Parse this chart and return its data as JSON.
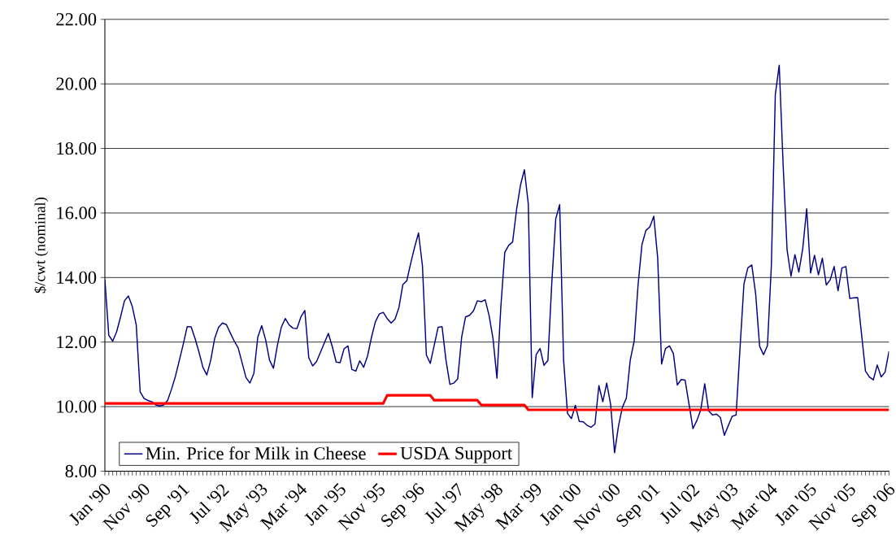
{
  "chart_data": {
    "type": "line",
    "ylabel": "$/cwt (nominal)",
    "categories": [
      "Jan '90",
      null,
      null,
      null,
      null,
      null,
      null,
      null,
      null,
      null,
      "Nov '90",
      null,
      null,
      null,
      null,
      null,
      null,
      null,
      null,
      null,
      "Sep '91",
      null,
      null,
      null,
      null,
      null,
      null,
      null,
      null,
      null,
      "Jul '92",
      null,
      null,
      null,
      null,
      null,
      null,
      null,
      null,
      null,
      "May '93",
      null,
      null,
      null,
      null,
      null,
      null,
      null,
      null,
      null,
      "Mar '94",
      null,
      null,
      null,
      null,
      null,
      null,
      null,
      null,
      null,
      "Jan '95",
      null,
      null,
      null,
      null,
      null,
      null,
      null,
      null,
      null,
      "Nov '95",
      null,
      null,
      null,
      null,
      null,
      null,
      null,
      null,
      null,
      "Sep '96",
      null,
      null,
      null,
      null,
      null,
      null,
      null,
      null,
      null,
      "Jul '97",
      null,
      null,
      null,
      null,
      null,
      null,
      null,
      null,
      null,
      "May '98",
      null,
      null,
      null,
      null,
      null,
      null,
      null,
      null,
      null,
      "Mar '99",
      null,
      null,
      null,
      null,
      null,
      null,
      null,
      null,
      null,
      "Jan '00",
      null,
      null,
      null,
      null,
      null,
      null,
      null,
      null,
      null,
      "Nov '00",
      null,
      null,
      null,
      null,
      null,
      null,
      null,
      null,
      null,
      "Sep '01",
      null,
      null,
      null,
      null,
      null,
      null,
      null,
      null,
      null,
      "Jul '02",
      null,
      null,
      null,
      null,
      null,
      null,
      null,
      null,
      null,
      "May '03",
      null,
      null,
      null,
      null,
      null,
      null,
      null,
      null,
      null,
      "Mar '04",
      null,
      null,
      null,
      null,
      null,
      null,
      null,
      null,
      null,
      "Jan '05",
      null,
      null,
      null,
      null,
      null,
      null,
      null,
      null,
      null,
      "Nov '05",
      null,
      null,
      null,
      null,
      null,
      null,
      null,
      null,
      null,
      "Sep '06"
    ],
    "series": [
      {
        "name": "Min. Price for Milk in Cheese",
        "color": "#000080",
        "values": [
          13.94,
          12.21,
          12.03,
          12.32,
          12.78,
          13.28,
          13.43,
          13.1,
          12.53,
          10.46,
          10.25,
          10.19,
          10.15,
          10.05,
          10.02,
          10.05,
          10.19,
          10.54,
          10.94,
          11.44,
          11.94,
          12.48,
          12.47,
          12.11,
          11.69,
          11.22,
          10.98,
          11.44,
          12.11,
          12.46,
          12.59,
          12.54,
          12.28,
          12.03,
          11.82,
          11.36,
          10.9,
          10.73,
          11.03,
          12.15,
          12.51,
          12.07,
          11.44,
          11.19,
          11.9,
          12.46,
          12.73,
          12.53,
          12.43,
          12.42,
          12.78,
          12.98,
          11.52,
          11.26,
          11.4,
          11.69,
          11.98,
          12.27,
          11.86,
          11.38,
          11.36,
          11.79,
          11.88,
          11.15,
          11.1,
          11.42,
          11.22,
          11.57,
          12.15,
          12.63,
          12.87,
          12.92,
          12.73,
          12.59,
          12.71,
          13.07,
          13.78,
          13.9,
          14.44,
          14.94,
          15.38,
          14.36,
          11.6,
          11.34,
          11.9,
          12.46,
          12.48,
          11.44,
          10.69,
          10.73,
          10.86,
          12.15,
          12.78,
          12.83,
          12.96,
          13.28,
          13.25,
          13.31,
          12.82,
          12.11,
          10.88,
          13.1,
          14.78,
          15.0,
          15.1,
          16.1,
          16.86,
          17.34,
          16.28,
          10.28,
          11.61,
          11.8,
          11.28,
          11.43,
          13.86,
          15.82,
          16.26,
          11.44,
          9.79,
          9.63,
          10.04,
          9.54,
          9.53,
          9.42,
          9.36,
          9.46,
          10.65,
          10.15,
          10.73,
          10.07,
          8.57,
          9.4,
          9.98,
          10.26,
          11.44,
          12.03,
          13.78,
          15.03,
          15.46,
          15.57,
          15.9,
          14.61,
          11.32,
          11.8,
          11.88,
          11.65,
          10.67,
          10.84,
          10.82,
          10.07,
          9.32,
          9.57,
          9.91,
          10.71,
          9.87,
          9.74,
          9.77,
          9.66,
          9.11,
          9.41,
          9.7,
          9.74,
          11.81,
          13.8,
          14.3,
          14.39,
          13.48,
          11.87,
          11.61,
          11.89,
          14.39,
          19.67,
          20.58,
          17.48,
          14.86,
          14.04,
          14.71,
          14.17,
          14.9,
          16.13,
          14.14,
          14.69,
          14.08,
          14.6,
          13.77,
          13.93,
          14.34,
          13.59,
          14.3,
          14.34,
          13.35,
          13.37,
          13.38,
          12.24,
          11.1,
          10.92,
          10.83,
          11.29,
          10.92,
          11.07,
          11.72
        ]
      },
      {
        "name": "USDA Support",
        "color": "#ff0000",
        "values": [
          10.1,
          10.1,
          10.1,
          10.1,
          10.1,
          10.1,
          10.1,
          10.1,
          10.1,
          10.1,
          10.1,
          10.1,
          10.1,
          10.1,
          10.1,
          10.1,
          10.1,
          10.1,
          10.1,
          10.1,
          10.1,
          10.1,
          10.1,
          10.1,
          10.1,
          10.1,
          10.1,
          10.1,
          10.1,
          10.1,
          10.1,
          10.1,
          10.1,
          10.1,
          10.1,
          10.1,
          10.1,
          10.1,
          10.1,
          10.1,
          10.1,
          10.1,
          10.1,
          10.1,
          10.1,
          10.1,
          10.1,
          10.1,
          10.1,
          10.1,
          10.1,
          10.1,
          10.1,
          10.1,
          10.1,
          10.1,
          10.1,
          10.1,
          10.1,
          10.1,
          10.1,
          10.1,
          10.1,
          10.1,
          10.1,
          10.1,
          10.1,
          10.1,
          10.1,
          10.1,
          10.1,
          10.1,
          10.35,
          10.35,
          10.35,
          10.35,
          10.35,
          10.35,
          10.35,
          10.35,
          10.35,
          10.35,
          10.35,
          10.35,
          10.2,
          10.2,
          10.2,
          10.2,
          10.2,
          10.2,
          10.2,
          10.2,
          10.2,
          10.2,
          10.2,
          10.2,
          10.05,
          10.05,
          10.05,
          10.05,
          10.05,
          10.05,
          10.05,
          10.05,
          10.05,
          10.05,
          10.05,
          10.05,
          9.9,
          9.9,
          9.9,
          9.9,
          9.9,
          9.9,
          9.9,
          9.9,
          9.9,
          9.9,
          9.9,
          9.9,
          9.9,
          9.9,
          9.9,
          9.9,
          9.9,
          9.9,
          9.9,
          9.9,
          9.9,
          9.9,
          9.9,
          9.9,
          9.9,
          9.9,
          9.9,
          9.9,
          9.9,
          9.9,
          9.9,
          9.9,
          9.9,
          9.9,
          9.9,
          9.9,
          9.9,
          9.9,
          9.9,
          9.9,
          9.9,
          9.9,
          9.9,
          9.9,
          9.9,
          9.9,
          9.9,
          9.9,
          9.9,
          9.9,
          9.9,
          9.9,
          9.9,
          9.9,
          9.9,
          9.9,
          9.9,
          9.9,
          9.9,
          9.9,
          9.9,
          9.9,
          9.9,
          9.9,
          9.9,
          9.9,
          9.9,
          9.9,
          9.9,
          9.9,
          9.9,
          9.9,
          9.9,
          9.9,
          9.9,
          9.9,
          9.9,
          9.9,
          9.9,
          9.9,
          9.9,
          9.9,
          9.9,
          9.9,
          9.9,
          9.9,
          9.9,
          9.9,
          9.9,
          9.9,
          9.9,
          9.9,
          9.9
        ]
      }
    ],
    "ylim": [
      8,
      22
    ],
    "yticks": [
      {
        "value": 8,
        "label": "8.00"
      },
      {
        "value": 10,
        "label": "10.00"
      },
      {
        "value": 12,
        "label": "12.00"
      },
      {
        "value": 14,
        "label": "14.00"
      },
      {
        "value": 16,
        "label": "16.00"
      },
      {
        "value": 18,
        "label": "18.00"
      },
      {
        "value": 20,
        "label": "20.00"
      },
      {
        "value": 22,
        "label": "22.00"
      }
    ],
    "grid": "y",
    "legend": "bottom left",
    "line_style": "solid"
  }
}
